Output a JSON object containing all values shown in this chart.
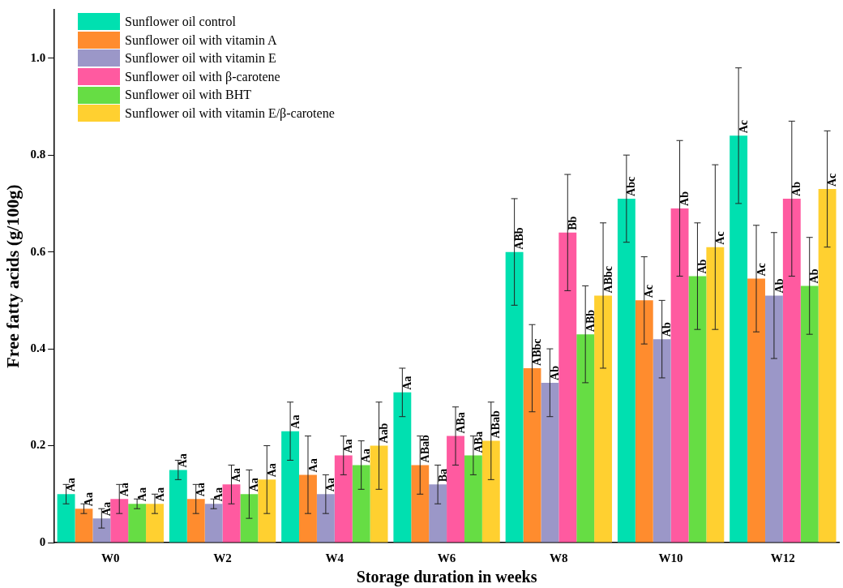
{
  "chart_data": {
    "type": "bar",
    "xlabel": "Storage duration in weeks",
    "ylabel": "Free fatty acids (g/100g)",
    "categories": [
      "W0",
      "W2",
      "W4",
      "W6",
      "W8",
      "W10",
      "W12"
    ],
    "ylim": [
      0,
      1.1
    ],
    "yticks": [
      0,
      {
        "value": 0.2,
        "label": "0.2"
      },
      {
        "value": 0.4,
        "label": "0.4"
      },
      {
        "value": 0.6,
        "label": "0.6"
      },
      {
        "value": 0.8,
        "label": "0.8"
      },
      {
        "value": 1,
        "label": "1.0"
      }
    ],
    "grid": false,
    "legend": "top left",
    "series": [
      {
        "name": "Sunflower oil control",
        "color": "#00e0b0",
        "values": [
          0.1,
          0.15,
          0.23,
          0.31,
          0.6,
          0.71,
          0.84
        ],
        "errors": [
          0.02,
          0.02,
          0.06,
          0.05,
          0.11,
          0.09,
          0.14
        ],
        "value_labels": [
          "Aa",
          "Aa",
          "Aa",
          "Aa",
          "ABb",
          "Abc",
          "Ac"
        ]
      },
      {
        "name": "Sunflower oil with vitamin A",
        "color": "#ff8c2e",
        "values": [
          0.07,
          0.09,
          0.14,
          0.16,
          0.36,
          0.5,
          0.545
        ],
        "errors": [
          0.01,
          0.03,
          0.08,
          0.06,
          0.09,
          0.09,
          0.11
        ],
        "value_labels": [
          "Aa",
          "Aa",
          "Aa",
          "ABab",
          "ABbc",
          "Ac",
          "Ac"
        ]
      },
      {
        "name": "Sunflower oil with vitamin E",
        "color": "#9b97c8",
        "values": [
          0.05,
          0.08,
          0.1,
          0.12,
          0.33,
          0.42,
          0.51
        ],
        "errors": [
          0.02,
          0.01,
          0.04,
          0.04,
          0.07,
          0.08,
          0.13
        ],
        "value_labels": [
          "Aa",
          "Aa",
          "Aa",
          "Ba",
          "Ab",
          "Ab",
          "Ab"
        ]
      },
      {
        "name": "Sunflower oil with β-carotene",
        "color": "#ff5aa0",
        "values": [
          0.09,
          0.12,
          0.18,
          0.22,
          0.64,
          0.69,
          0.71
        ],
        "errors": [
          0.03,
          0.04,
          0.04,
          0.06,
          0.12,
          0.14,
          0.16
        ],
        "value_labels": [
          "Aa",
          "Aa",
          "Aa",
          "ABa",
          "Bb",
          "Ab",
          "Ab"
        ]
      },
      {
        "name": "Sunflower oil with BHT",
        "color": "#66dd44",
        "values": [
          0.08,
          0.1,
          0.16,
          0.18,
          0.43,
          0.55,
          0.53
        ],
        "errors": [
          0.01,
          0.05,
          0.05,
          0.04,
          0.1,
          0.11,
          0.1
        ],
        "value_labels": [
          "Aa",
          "Aa",
          "Aa",
          "ABa",
          "ABb",
          "Ab",
          "Ab"
        ]
      },
      {
        "name": "Sunflower oil with vitamin E/β-carotene",
        "color": "#ffd030",
        "values": [
          0.08,
          0.13,
          0.2,
          0.21,
          0.51,
          0.61,
          0.73
        ],
        "errors": [
          0.02,
          0.07,
          0.09,
          0.08,
          0.15,
          0.17,
          0.12
        ],
        "value_labels": [
          "Aa",
          "Aa",
          "Aab",
          "ABab",
          "ABbc",
          "Ac",
          "Ac"
        ]
      }
    ]
  }
}
